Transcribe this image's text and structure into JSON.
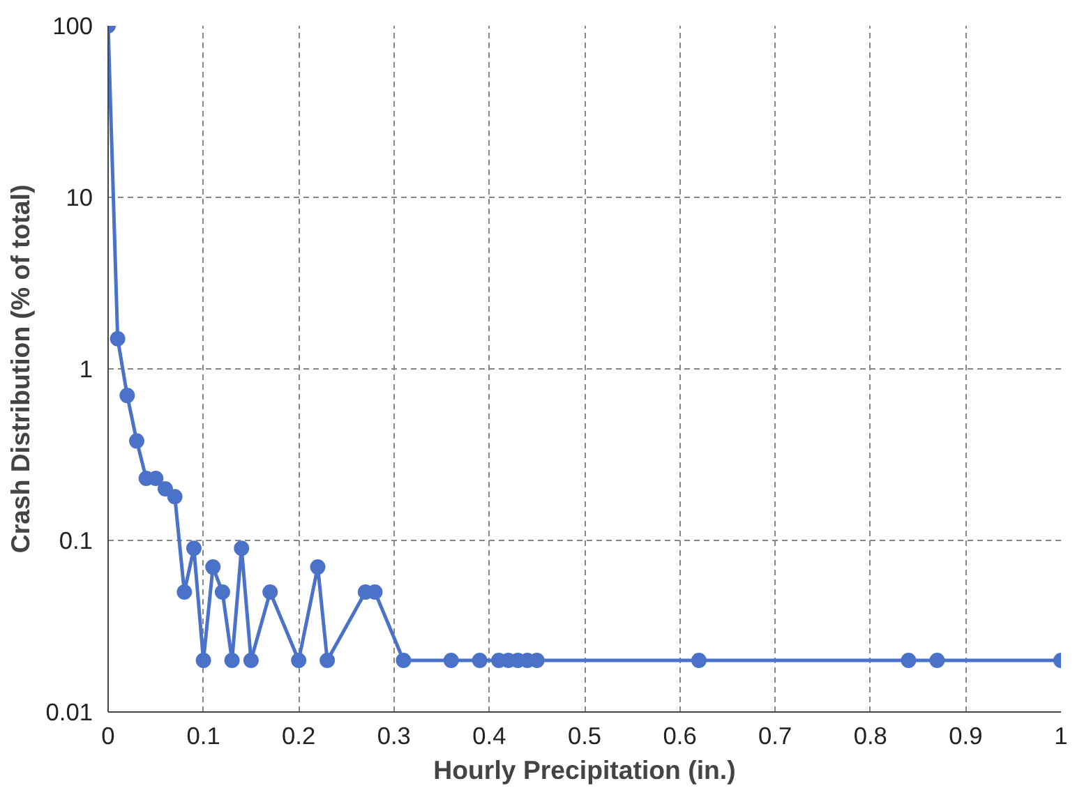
{
  "chart_data": {
    "type": "line",
    "xlabel": "Hourly Precipitation (in.)",
    "ylabel": "Crash Distribution (% of total)",
    "x": [
      0,
      0.01,
      0.02,
      0.03,
      0.04,
      0.05,
      0.06,
      0.07,
      0.08,
      0.09,
      0.1,
      0.11,
      0.12,
      0.13,
      0.14,
      0.15,
      0.17,
      0.2,
      0.22,
      0.23,
      0.27,
      0.28,
      0.31,
      0.36,
      0.39,
      0.41,
      0.42,
      0.43,
      0.44,
      0.45,
      0.62,
      0.84,
      0.87,
      1.0
    ],
    "series": [
      {
        "color": "#4a72c8",
        "values": [
          100,
          1.5,
          0.7,
          0.38,
          0.23,
          0.23,
          0.2,
          0.18,
          0.05,
          0.09,
          0.02,
          0.07,
          0.05,
          0.02,
          0.09,
          0.02,
          0.05,
          0.02,
          0.07,
          0.02,
          0.05,
          0.05,
          0.02,
          0.02,
          0.02,
          0.02,
          0.02,
          0.02,
          0.02,
          0.02,
          0.02,
          0.02,
          0.02,
          0.02
        ]
      }
    ],
    "xlim": [
      0,
      1
    ],
    "xticks": [
      0,
      0.1,
      0.2,
      0.3,
      0.4,
      0.5,
      0.6,
      0.7,
      0.8,
      0.9,
      1
    ],
    "ylim": [
      0.01,
      100
    ],
    "yticks": [
      0.01,
      0.1,
      1,
      10,
      100
    ],
    "log": "y",
    "grid": true,
    "marker": "circle",
    "line_style": "solid"
  }
}
